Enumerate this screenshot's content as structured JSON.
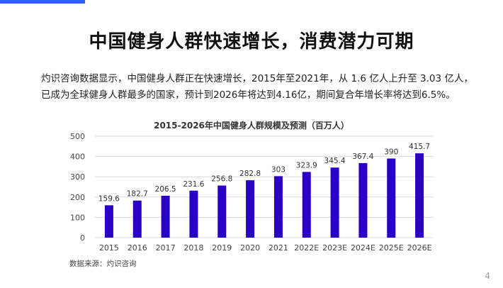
{
  "slide": {
    "title": "中国健身人群快速增长，消费潜力可期",
    "intro": "灼识咨询数据显示，中国健身人群正在快速增长，2015年至2021年，从 1.6 亿人上升至 3.03 亿人，已成为全球健身人群最多的国家，预计到2026年将达到4.16亿，期间复合年增长率将达到6.5%。",
    "source": "数据来源：灼识咨询",
    "page_number": "4"
  },
  "colors": {
    "bar": "#2a00c8",
    "accent": "#2f5cff",
    "grid": "#dddddd"
  },
  "chart_data": {
    "type": "bar",
    "title": "2015-2026年中国健身人群规模及预测（百万人）",
    "xlabel": "",
    "ylabel": "",
    "categories": [
      "2015",
      "2016",
      "2017",
      "2018",
      "2019",
      "2020",
      "2021",
      "2022E",
      "2023E",
      "2024E",
      "2025E",
      "2026E"
    ],
    "values": [
      159.6,
      182.7,
      206.5,
      231.6,
      256.8,
      282.8,
      303,
      323.9,
      345.4,
      367.4,
      390,
      415.7
    ],
    "data_labels": [
      "159.6",
      "182.7",
      "206.5",
      "231.6",
      "256.8",
      "282.8",
      "303",
      "323.9",
      "345.4",
      "367.4",
      "390",
      "415.7"
    ],
    "ylim": [
      0,
      500
    ],
    "yticks": [
      "0",
      "100",
      "200",
      "300",
      "400",
      "500"
    ],
    "grid": true,
    "legend": "none"
  }
}
